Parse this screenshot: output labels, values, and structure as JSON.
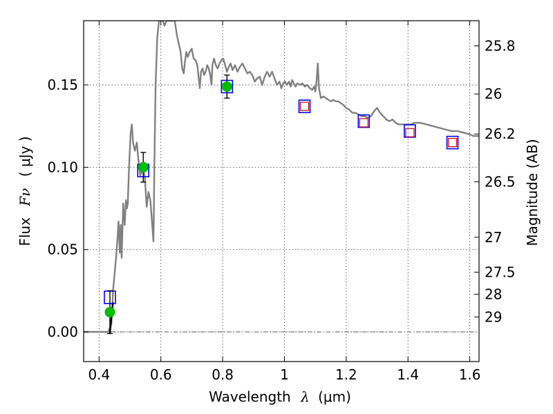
{
  "chart_data": {
    "type": "scatter",
    "xlabel_main": "Wavelength",
    "xlabel_symbol": "λ",
    "xlabel_unit": "(μm)",
    "ylabel_main": "Flux",
    "ylabel_symbol": "Fν",
    "ylabel_unit": "( μJy )",
    "y2label": "Magnitude (AB)",
    "xlim": [
      0.35,
      1.63
    ],
    "ylim": [
      -0.018,
      0.189
    ],
    "grid": true,
    "x_ticks": [
      0.4,
      0.6,
      0.8,
      1.0,
      1.2,
      1.4,
      1.6
    ],
    "x_tick_labels": [
      "0.4",
      "0.6",
      "0.8",
      "1",
      "1.2",
      "1.4",
      "1.6"
    ],
    "y_ticks": [
      0.0,
      0.05,
      0.1,
      0.15
    ],
    "y_tick_labels": [
      "0.00",
      "0.05",
      "0.10",
      "0.15"
    ],
    "y2_ticks": [
      {
        "label": "25.8",
        "flux": 0.1737
      },
      {
        "label": "26",
        "flux": 0.1445
      },
      {
        "label": "26.2",
        "flux": 0.1202
      },
      {
        "label": "26.5",
        "flux": 0.0912
      },
      {
        "label": "27",
        "flux": 0.0575
      },
      {
        "label": "27.5",
        "flux": 0.0363
      },
      {
        "label": "28",
        "flux": 0.0229
      },
      {
        "label": "29",
        "flux": 0.0091
      }
    ],
    "zero_line": 0.0,
    "observed_points": {
      "color": "#00bb00",
      "points": [
        {
          "x": 0.435,
          "y": 0.012,
          "err": 0.013
        },
        {
          "x": 0.543,
          "y": 0.1,
          "err": 0.009
        },
        {
          "x": 0.814,
          "y": 0.149,
          "err": 0.007
        }
      ]
    },
    "model_boxes_blue": {
      "color": "#0000ff",
      "points": [
        {
          "x": 0.435,
          "y": 0.021
        },
        {
          "x": 0.543,
          "y": 0.098
        },
        {
          "x": 0.814,
          "y": 0.149
        },
        {
          "x": 1.065,
          "y": 0.137
        },
        {
          "x": 1.257,
          "y": 0.128
        },
        {
          "x": 1.406,
          "y": 0.122
        },
        {
          "x": 1.544,
          "y": 0.115
        }
      ]
    },
    "model_boxes_red": {
      "color": "#cc0000",
      "points": [
        {
          "x": 1.065,
          "y": 0.137
        },
        {
          "x": 1.257,
          "y": 0.127
        },
        {
          "x": 1.406,
          "y": 0.121
        },
        {
          "x": 1.544,
          "y": 0.115
        }
      ]
    },
    "sed_model": {
      "color": "#808080",
      "points": [
        [
          0.35,
          0.0
        ],
        [
          0.43,
          0.0
        ],
        [
          0.44,
          0.005
        ],
        [
          0.445,
          0.025
        ],
        [
          0.455,
          0.045
        ],
        [
          0.46,
          0.058
        ],
        [
          0.463,
          0.067
        ],
        [
          0.467,
          0.048
        ],
        [
          0.47,
          0.065
        ],
        [
          0.473,
          0.045
        ],
        [
          0.478,
          0.078
        ],
        [
          0.483,
          0.065
        ],
        [
          0.487,
          0.08
        ],
        [
          0.49,
          0.075
        ],
        [
          0.493,
          0.078
        ],
        [
          0.497,
          0.1
        ],
        [
          0.502,
          0.12
        ],
        [
          0.506,
          0.126
        ],
        [
          0.51,
          0.115
        ],
        [
          0.516,
          0.11
        ],
        [
          0.522,
          0.115
        ],
        [
          0.527,
          0.105
        ],
        [
          0.533,
          0.095
        ],
        [
          0.538,
          0.097
        ],
        [
          0.543,
          0.1
        ],
        [
          0.548,
          0.094
        ],
        [
          0.554,
          0.076
        ],
        [
          0.56,
          0.085
        ],
        [
          0.566,
          0.08
        ],
        [
          0.572,
          0.065
        ],
        [
          0.576,
          0.055
        ],
        [
          0.579,
          0.1
        ],
        [
          0.583,
          0.15
        ],
        [
          0.588,
          0.178
        ],
        [
          0.594,
          0.189
        ],
        [
          0.6,
          0.189
        ],
        [
          0.606,
          0.189
        ],
        [
          0.612,
          0.186
        ],
        [
          0.618,
          0.189
        ],
        [
          0.63,
          0.189
        ],
        [
          0.645,
          0.189
        ],
        [
          0.652,
          0.18
        ],
        [
          0.658,
          0.175
        ],
        [
          0.664,
          0.17
        ],
        [
          0.669,
          0.16
        ],
        [
          0.674,
          0.157
        ],
        [
          0.678,
          0.164
        ],
        [
          0.682,
          0.17
        ],
        [
          0.687,
          0.167
        ],
        [
          0.693,
          0.17
        ],
        [
          0.7,
          0.172
        ],
        [
          0.706,
          0.166
        ],
        [
          0.712,
          0.165
        ],
        [
          0.718,
          0.162
        ],
        [
          0.722,
          0.155
        ],
        [
          0.726,
          0.148
        ],
        [
          0.73,
          0.158
        ],
        [
          0.735,
          0.16
        ],
        [
          0.74,
          0.156
        ],
        [
          0.745,
          0.158
        ],
        [
          0.75,
          0.162
        ],
        [
          0.755,
          0.16
        ],
        [
          0.76,
          0.156
        ],
        [
          0.764,
          0.15
        ],
        [
          0.767,
          0.162
        ],
        [
          0.772,
          0.166
        ],
        [
          0.778,
          0.162
        ],
        [
          0.784,
          0.16
        ],
        [
          0.79,
          0.163
        ],
        [
          0.796,
          0.165
        ],
        [
          0.802,
          0.166
        ],
        [
          0.808,
          0.162
        ],
        [
          0.814,
          0.158
        ],
        [
          0.82,
          0.161
        ],
        [
          0.826,
          0.163
        ],
        [
          0.832,
          0.159
        ],
        [
          0.84,
          0.162
        ],
        [
          0.848,
          0.158
        ],
        [
          0.856,
          0.161
        ],
        [
          0.864,
          0.163
        ],
        [
          0.872,
          0.16
        ],
        [
          0.88,
          0.157
        ],
        [
          0.888,
          0.158
        ],
        [
          0.896,
          0.156
        ],
        [
          0.904,
          0.152
        ],
        [
          0.912,
          0.154
        ],
        [
          0.92,
          0.155
        ],
        [
          0.928,
          0.15
        ],
        [
          0.936,
          0.155
        ],
        [
          0.944,
          0.158
        ],
        [
          0.952,
          0.155
        ],
        [
          0.96,
          0.158
        ],
        [
          0.968,
          0.154
        ],
        [
          0.976,
          0.15
        ],
        [
          0.984,
          0.152
        ],
        [
          0.99,
          0.148
        ],
        [
          0.996,
          0.151
        ],
        [
          1.002,
          0.152
        ],
        [
          1.008,
          0.15
        ],
        [
          1.015,
          0.152
        ],
        [
          1.02,
          0.149
        ],
        [
          1.025,
          0.153
        ],
        [
          1.03,
          0.151
        ],
        [
          1.036,
          0.149
        ],
        [
          1.042,
          0.151
        ],
        [
          1.05,
          0.15
        ],
        [
          1.058,
          0.151
        ],
        [
          1.066,
          0.149
        ],
        [
          1.074,
          0.15
        ],
        [
          1.082,
          0.148
        ],
        [
          1.09,
          0.147
        ],
        [
          1.096,
          0.149
        ],
        [
          1.1,
          0.146
        ],
        [
          1.104,
          0.152
        ],
        [
          1.108,
          0.163
        ],
        [
          1.112,
          0.148
        ],
        [
          1.118,
          0.142
        ],
        [
          1.126,
          0.143
        ],
        [
          1.134,
          0.142
        ],
        [
          1.142,
          0.141
        ],
        [
          1.15,
          0.14
        ],
        [
          1.158,
          0.141
        ],
        [
          1.166,
          0.14
        ],
        [
          1.174,
          0.14
        ],
        [
          1.182,
          0.139
        ],
        [
          1.19,
          0.138
        ],
        [
          1.2,
          0.136
        ],
        [
          1.21,
          0.135
        ],
        [
          1.22,
          0.133
        ],
        [
          1.23,
          0.133
        ],
        [
          1.24,
          0.132
        ],
        [
          1.25,
          0.131
        ],
        [
          1.26,
          0.131
        ],
        [
          1.27,
          0.13
        ],
        [
          1.28,
          0.131
        ],
        [
          1.29,
          0.134
        ],
        [
          1.3,
          0.136
        ],
        [
          1.31,
          0.133
        ],
        [
          1.32,
          0.131
        ],
        [
          1.33,
          0.129
        ],
        [
          1.34,
          0.128
        ],
        [
          1.35,
          0.129
        ],
        [
          1.36,
          0.127
        ],
        [
          1.37,
          0.126
        ],
        [
          1.38,
          0.126
        ],
        [
          1.39,
          0.126
        ],
        [
          1.4,
          0.126
        ],
        [
          1.41,
          0.126
        ],
        [
          1.42,
          0.127
        ],
        [
          1.44,
          0.127
        ],
        [
          1.46,
          0.126
        ],
        [
          1.48,
          0.125
        ],
        [
          1.5,
          0.124
        ],
        [
          1.52,
          0.123
        ],
        [
          1.54,
          0.122
        ],
        [
          1.56,
          0.122
        ],
        [
          1.58,
          0.121
        ],
        [
          1.6,
          0.12
        ],
        [
          1.612,
          0.119
        ],
        [
          1.63,
          0.119
        ]
      ]
    },
    "observed_line": [
      [
        0.435,
        -0.001
      ],
      [
        0.44,
        0.009
      ],
      [
        0.445,
        0.018
      ]
    ]
  }
}
